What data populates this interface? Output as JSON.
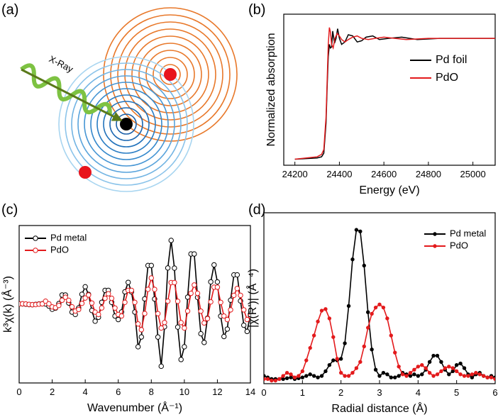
{
  "diagram": {
    "panel_label": "(a)",
    "beam_label": "X-Ray"
  },
  "chart_data": [
    {
      "type": "line",
      "panel_label": "(b)",
      "x_label": "Energy (eV)",
      "y_label": "Normalized absorption",
      "xlim": [
        24150,
        25100
      ],
      "ylim": [
        -0.05,
        1.2
      ],
      "xticks": [
        24200,
        24400,
        24600,
        24800,
        25000
      ],
      "legend": "right",
      "series": [
        {
          "name": "Pd foil",
          "color": "#000000",
          "x": [
            24200,
            24300,
            24320,
            24330,
            24340,
            24345,
            24350,
            24355,
            24360,
            24365,
            24370,
            24378,
            24385,
            24392,
            24400,
            24410,
            24425,
            24440,
            24460,
            24480,
            24500,
            24520,
            24550,
            24580,
            24620,
            24680,
            24750,
            24850,
            24950,
            25100
          ],
          "values": [
            0,
            0.01,
            0.02,
            0.05,
            0.3,
            0.6,
            0.85,
            0.95,
            0.92,
            0.93,
            1.06,
            0.96,
            1.0,
            1.08,
            1.0,
            0.95,
            0.97,
            1.03,
            1.02,
            0.97,
            0.98,
            1.01,
            1.02,
            0.99,
            1.0,
            1.01,
            0.99,
            1.0,
            1.0,
            1.0
          ]
        },
        {
          "name": "PdO",
          "color": "#e31a1c",
          "x": [
            24200,
            24300,
            24320,
            24330,
            24340,
            24345,
            24350,
            24355,
            24360,
            24365,
            24372,
            24380,
            24390,
            24400,
            24410,
            24425,
            24440,
            24460,
            24480,
            24500,
            24530,
            24560,
            24600,
            24650,
            24700,
            24800,
            24900,
            25000,
            25100
          ],
          "values": [
            0,
            0.02,
            0.04,
            0.08,
            0.35,
            0.65,
            0.95,
            1.09,
            1.05,
            0.95,
            0.92,
            1.0,
            1.04,
            1.02,
            0.99,
            0.97,
            0.99,
            1.01,
            1.02,
            1.0,
            0.99,
            1.0,
            1.01,
            1.0,
            0.99,
            1.0,
            1.0,
            1.0,
            1.0
          ]
        }
      ]
    },
    {
      "type": "line",
      "panel_label": "(c)",
      "x_label": "Wavenumber (Å⁻¹)",
      "y_label": "k³χ(k) (Å⁻³)",
      "xlim": [
        0,
        14
      ],
      "ylim": [
        -9,
        9
      ],
      "xticks": [
        0,
        2,
        4,
        6,
        8,
        10,
        12,
        14
      ],
      "legend": "upper left",
      "marker": "open",
      "x": [
        0,
        0.2,
        0.4,
        0.6,
        0.8,
        1.0,
        1.2,
        1.4,
        1.6,
        1.8,
        2.0,
        2.2,
        2.4,
        2.6,
        2.8,
        3.0,
        3.2,
        3.4,
        3.6,
        3.8,
        4.0,
        4.2,
        4.4,
        4.6,
        4.8,
        5.0,
        5.2,
        5.4,
        5.6,
        5.8,
        6.0,
        6.2,
        6.4,
        6.6,
        6.8,
        7.0,
        7.2,
        7.4,
        7.6,
        7.8,
        8.0,
        8.2,
        8.4,
        8.6,
        8.8,
        9.0,
        9.2,
        9.4,
        9.6,
        9.8,
        10.0,
        10.2,
        10.4,
        10.6,
        10.8,
        11.0,
        11.2,
        11.4,
        11.6,
        11.8,
        12.0,
        12.2,
        12.4,
        12.6,
        12.8,
        13.0,
        13.2,
        13.4,
        13.6,
        13.8,
        14.0
      ],
      "series": [
        {
          "name": "Pd metal",
          "color": "#000000",
          "values": [
            0.04,
            0.04,
            0.01,
            -0.04,
            -0.05,
            -0.02,
            0.03,
            0.05,
            0.03,
            -0.21,
            -0.58,
            -0.45,
            0.07,
            1.06,
            1.06,
            0.14,
            -0.9,
            -1.17,
            -0.42,
            1.14,
            2.0,
            1.13,
            -0.71,
            -1.94,
            -1.49,
            0.22,
            1.59,
            1.59,
            0.22,
            -1.35,
            -1.75,
            -0.88,
            1.42,
            2.5,
            1.42,
            -0.89,
            -4.86,
            -3.74,
            0.62,
            4.43,
            4.43,
            0.6,
            -3.75,
            -7.09,
            -2.58,
            4.15,
            7.3,
            4.13,
            -2.61,
            -6.32,
            -4.86,
            0.81,
            5.75,
            5.75,
            0.78,
            -3.37,
            -4.37,
            -1.59,
            2.56,
            4.5,
            2.55,
            -1.36,
            -3.69,
            -2.84,
            0.47,
            3.36,
            3.36,
            0.38,
            -2.4,
            -3.11,
            -1.13
          ]
        },
        {
          "name": "PdO",
          "color": "#e31a1c",
          "values": [
            0.03,
            0.05,
            0.03,
            -0.02,
            -0.05,
            -0.04,
            0.01,
            0.04,
            0.35,
            0.05,
            -0.3,
            -0.39,
            -0.14,
            0.46,
            0.8,
            0.45,
            -0.29,
            -0.78,
            -0.6,
            0.1,
            0.71,
            1.06,
            0.14,
            -0.9,
            -1.17,
            -0.42,
            0.68,
            1.2,
            0.68,
            -0.43,
            -1.17,
            -1.34,
            0.22,
            1.59,
            1.59,
            0.22,
            -2.25,
            -2.91,
            -1.06,
            1.71,
            3.0,
            1.7,
            -1.07,
            -2.72,
            -2.09,
            0.35,
            2.48,
            2.48,
            0.34,
            -2.1,
            -2.72,
            -0.78,
            1.25,
            2.2,
            1.25,
            -0.79,
            -2.14,
            -1.64,
            0.27,
            1.95,
            1.95,
            0.22,
            -1.35,
            -1.75,
            -0.64,
            1.02,
            1.8,
            1.02,
            -0.64,
            -1.75,
            -1.34
          ]
        }
      ]
    },
    {
      "type": "line",
      "panel_label": "(d)",
      "x_label": "Radial distance (Å)",
      "y_label": "|χ(R')| (Å⁻⁴)",
      "xlim": [
        0,
        6
      ],
      "ylim": [
        0,
        11
      ],
      "xticks": [
        0,
        1,
        2,
        3,
        4,
        5,
        6
      ],
      "legend": "upper right",
      "marker": "filled",
      "x": [
        0,
        0.1,
        0.2,
        0.3,
        0.4,
        0.5,
        0.6,
        0.7,
        0.8,
        0.9,
        1.0,
        1.1,
        1.2,
        1.3,
        1.4,
        1.5,
        1.6,
        1.7,
        1.8,
        1.9,
        2.0,
        2.1,
        2.2,
        2.3,
        2.4,
        2.5,
        2.6,
        2.7,
        2.8,
        2.9,
        3.0,
        3.1,
        3.2,
        3.3,
        3.4,
        3.5,
        3.6,
        3.7,
        3.8,
        3.9,
        4.0,
        4.1,
        4.2,
        4.3,
        4.4,
        4.5,
        4.6,
        4.7,
        4.8,
        4.9,
        5.0,
        5.1,
        5.2,
        5.3,
        5.4,
        5.5,
        5.6,
        5.7,
        5.8,
        5.9,
        6.0
      ],
      "series": [
        {
          "name": "Pd metal",
          "color": "#000000",
          "values": [
            0.5,
            0.4,
            0.3,
            0.3,
            0.3,
            0.3,
            0.35,
            0.4,
            0.3,
            0.35,
            0.4,
            0.5,
            0.6,
            0.5,
            0.4,
            0.5,
            0.8,
            1.2,
            1.5,
            1.5,
            1.6,
            2.6,
            5.0,
            8.0,
            9.9,
            9.8,
            7.6,
            4.6,
            2.2,
            0.9,
            0.5,
            0.7,
            0.6,
            0.4,
            0.4,
            0.5,
            0.7,
            0.6,
            0.5,
            0.6,
            0.5,
            0.6,
            0.9,
            1.4,
            1.8,
            1.8,
            1.4,
            0.9,
            0.6,
            0.8,
            1.2,
            1.3,
            1.0,
            0.6,
            0.4,
            0.6,
            0.7,
            0.5,
            0.4,
            0.5,
            0.4
          ]
        },
        {
          "name": "PdO",
          "color": "#e31a1c",
          "values": [
            0.3,
            0.3,
            0.2,
            0.2,
            0.3,
            0.5,
            0.7,
            0.6,
            0.4,
            0.5,
            0.8,
            1.5,
            2.3,
            3.1,
            4.0,
            4.7,
            4.8,
            4.2,
            3.0,
            1.6,
            0.7,
            0.5,
            0.5,
            0.7,
            1.0,
            1.4,
            2.4,
            3.6,
            4.5,
            4.9,
            5.1,
            4.9,
            4.2,
            3.1,
            2.0,
            1.1,
            0.6,
            0.5,
            0.7,
            0.9,
            1.1,
            1.2,
            1.0,
            0.7,
            0.5,
            0.6,
            0.8,
            1.0,
            1.1,
            1.0,
            0.8,
            0.6,
            0.5,
            0.5,
            0.6,
            0.7,
            0.6,
            0.5,
            0.4,
            0.4,
            0.3
          ]
        }
      ]
    }
  ]
}
